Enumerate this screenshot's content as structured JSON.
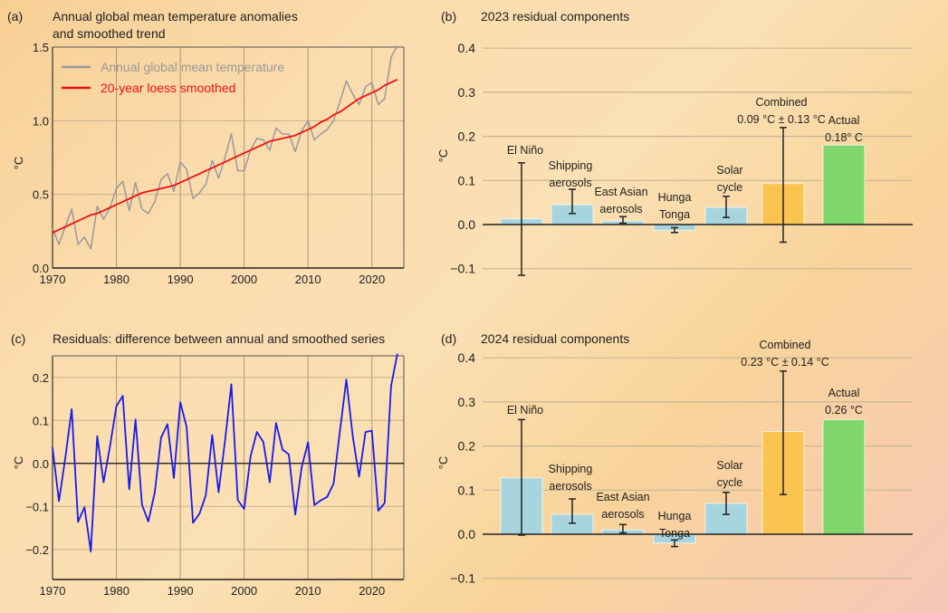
{
  "chart_data": [
    {
      "panel": "(a)",
      "type": "line",
      "title": "Annual global mean temperature anomalies and smoothed trend",
      "xlabel": "",
      "ylabel": "°C",
      "xlim": [
        1970,
        2025
      ],
      "ylim": [
        0.0,
        1.5
      ],
      "xticks": [
        "1970",
        "1980",
        "1990",
        "2000",
        "2010",
        "2020"
      ],
      "yticks": [
        "0.0",
        "0.5",
        "1.0",
        "1.5"
      ],
      "grid": true,
      "legend": "top-left",
      "x": [
        1970,
        1971,
        1972,
        1973,
        1974,
        1975,
        1976,
        1977,
        1978,
        1979,
        1980,
        1981,
        1982,
        1983,
        1984,
        1985,
        1986,
        1987,
        1988,
        1989,
        1990,
        1991,
        1992,
        1993,
        1994,
        1995,
        1996,
        1997,
        1998,
        1999,
        2000,
        2001,
        2002,
        2003,
        2004,
        2005,
        2006,
        2007,
        2008,
        2009,
        2010,
        2011,
        2012,
        2013,
        2014,
        2015,
        2016,
        2017,
        2018,
        2019,
        2020,
        2021,
        2022,
        2023,
        2024
      ],
      "series": [
        {
          "name": "Annual global mean temperature",
          "color": "#999999",
          "values": [
            0.27,
            0.16,
            0.28,
            0.4,
            0.16,
            0.21,
            0.13,
            0.42,
            0.33,
            0.41,
            0.54,
            0.59,
            0.39,
            0.58,
            0.4,
            0.37,
            0.45,
            0.6,
            0.64,
            0.52,
            0.72,
            0.67,
            0.47,
            0.51,
            0.57,
            0.73,
            0.61,
            0.75,
            0.91,
            0.66,
            0.66,
            0.8,
            0.88,
            0.87,
            0.8,
            0.95,
            0.91,
            0.91,
            0.79,
            0.93,
            1.0,
            0.87,
            0.91,
            0.94,
            1.0,
            1.13,
            1.27,
            1.18,
            1.11,
            1.23,
            1.26,
            1.11,
            1.15,
            1.43,
            1.51
          ]
        },
        {
          "name": "20-year loess smoothed",
          "color": "#ee1111",
          "values": [
            0.24,
            0.26,
            0.28,
            0.3,
            0.32,
            0.34,
            0.36,
            0.37,
            0.39,
            0.41,
            0.43,
            0.45,
            0.47,
            0.49,
            0.51,
            0.52,
            0.53,
            0.54,
            0.55,
            0.56,
            0.58,
            0.6,
            0.62,
            0.64,
            0.66,
            0.68,
            0.7,
            0.72,
            0.74,
            0.76,
            0.78,
            0.8,
            0.82,
            0.84,
            0.86,
            0.87,
            0.88,
            0.89,
            0.9,
            0.92,
            0.94,
            0.96,
            0.99,
            1.01,
            1.04,
            1.06,
            1.09,
            1.12,
            1.15,
            1.17,
            1.19,
            1.21,
            1.24,
            1.26,
            1.28
          ]
        }
      ]
    },
    {
      "panel": "(b)",
      "type": "bar",
      "title": "2023 residual components",
      "ylabel": "°C",
      "ylim": [
        -0.1,
        0.4
      ],
      "yticks": [
        "−0.1",
        "0.0",
        "0.1",
        "0.2",
        "0.3",
        "0.4"
      ],
      "grid": true,
      "categories": [
        {
          "line1": "El Niño",
          "line2": ""
        },
        {
          "line1": "Shipping",
          "line2": "aerosols"
        },
        {
          "line1": "East Asian",
          "line2": "aerosols"
        },
        {
          "line1": "Hunga",
          "line2": "Tonga"
        },
        {
          "line1": "Solar",
          "line2": "cycle"
        },
        {
          "line1": "Combined",
          "line2": "0.09 °C ± 0.13 °C"
        },
        {
          "line1": "Actual",
          "line2": "0.18° C"
        }
      ],
      "values": [
        0.013,
        0.045,
        0.008,
        -0.013,
        0.039,
        0.093,
        0.18
      ],
      "error_low": [
        -0.115,
        0.025,
        0.003,
        -0.018,
        0.016,
        -0.04,
        null
      ],
      "error_high": [
        0.14,
        0.08,
        0.018,
        -0.007,
        0.064,
        0.22,
        null
      ],
      "colors": [
        "#a8d4de",
        "#a8d4de",
        "#a8d4de",
        "#a8d4de",
        "#a8d4de",
        "#fbc451",
        "#7fd66b"
      ]
    },
    {
      "panel": "(c)",
      "type": "line",
      "title": "Residuals: difference between annual and smoothed series",
      "ylabel": "°C",
      "xlim": [
        1970,
        2025
      ],
      "ylim": [
        -0.27,
        0.25
      ],
      "xticks": [
        "1970",
        "1980",
        "1990",
        "2000",
        "2010",
        "2020"
      ],
      "yticks": [
        "−0.2",
        "−0.1",
        "0.0",
        "0.1",
        "0.2"
      ],
      "grid": true,
      "x": [
        1970,
        1971,
        1972,
        1973,
        1974,
        1975,
        1976,
        1977,
        1978,
        1979,
        1980,
        1981,
        1982,
        1983,
        1984,
        1985,
        1986,
        1987,
        1988,
        1989,
        1990,
        1991,
        1992,
        1993,
        1994,
        1995,
        1996,
        1997,
        1998,
        1999,
        2000,
        2001,
        2002,
        2003,
        2004,
        2005,
        2006,
        2007,
        2008,
        2009,
        2010,
        2011,
        2012,
        2013,
        2014,
        2015,
        2016,
        2017,
        2018,
        2019,
        2020,
        2021,
        2022,
        2023,
        2024
      ],
      "series": [
        {
          "name": "Residuals",
          "color": "#1a1aee",
          "values": [
            0.037,
            -0.088,
            0.012,
            0.126,
            -0.136,
            -0.102,
            -0.205,
            0.063,
            -0.044,
            0.04,
            0.133,
            0.157,
            -0.06,
            0.102,
            -0.096,
            -0.135,
            -0.068,
            0.06,
            0.091,
            -0.034,
            0.142,
            0.085,
            -0.138,
            -0.117,
            -0.074,
            0.066,
            -0.067,
            0.052,
            0.184,
            -0.085,
            -0.106,
            0.016,
            0.073,
            0.05,
            -0.044,
            0.094,
            0.032,
            0.021,
            -0.119,
            -0.01,
            0.049,
            -0.097,
            -0.086,
            -0.078,
            -0.047,
            0.076,
            0.195,
            0.063,
            -0.031,
            0.073,
            0.076,
            -0.11,
            -0.092,
            0.18,
            0.255
          ]
        }
      ]
    },
    {
      "panel": "(d)",
      "type": "bar",
      "title": "2024 residual components",
      "ylabel": "°C",
      "ylim": [
        -0.1,
        0.4
      ],
      "yticks": [
        "−0.1",
        "0.0",
        "0.1",
        "0.2",
        "0.3",
        "0.4"
      ],
      "grid": true,
      "categories": [
        {
          "line1": "El Niño",
          "line2": ""
        },
        {
          "line1": "Shipping",
          "line2": "aerosols"
        },
        {
          "line1": "East Asian",
          "line2": "aerosols"
        },
        {
          "line1": "Hunga",
          "line2": "Tonga"
        },
        {
          "line1": "Solar",
          "line2": "cycle"
        },
        {
          "line1": "Combined",
          "line2": "0.23 °C ± 0.14 °C"
        },
        {
          "line1": "Actual",
          "line2": "0.26 °C"
        }
      ],
      "values": [
        0.128,
        0.045,
        0.01,
        -0.02,
        0.07,
        0.233,
        0.26
      ],
      "error_low": [
        -0.002,
        0.025,
        0.003,
        -0.028,
        0.045,
        0.09,
        null
      ],
      "error_high": [
        0.26,
        0.08,
        0.022,
        -0.013,
        0.095,
        0.37,
        null
      ],
      "colors": [
        "#a8d4de",
        "#a8d4de",
        "#a8d4de",
        "#a8d4de",
        "#a8d4de",
        "#fbc451",
        "#7fd66b"
      ]
    }
  ],
  "panels": {
    "a": {
      "tag": "(a)",
      "title1": "Annual global mean temperature anomalies",
      "title2": "and smoothed trend",
      "ylabel": "°C"
    },
    "b": {
      "tag": "(b)",
      "title1": "2023 residual components",
      "ylabel": "°C"
    },
    "c": {
      "tag": "(c)",
      "title1": "Residuals: difference between annual and smoothed series",
      "ylabel": "°C"
    },
    "d": {
      "tag": "(d)",
      "title1": "2024 residual components",
      "ylabel": "°C"
    }
  }
}
